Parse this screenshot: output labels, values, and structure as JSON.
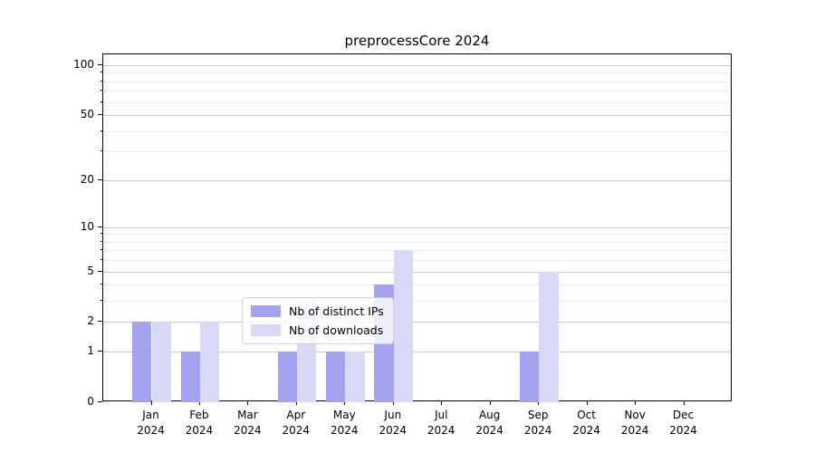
{
  "chart_data": {
    "type": "bar",
    "title": "preprocessCore 2024",
    "x_year": "2024",
    "categories": [
      "Jan",
      "Feb",
      "Mar",
      "Apr",
      "May",
      "Jun",
      "Jul",
      "Aug",
      "Sep",
      "Oct",
      "Nov",
      "Dec"
    ],
    "series": [
      {
        "name": "Nb of distinct IPs",
        "color": "#a3a3ef",
        "values": [
          2,
          1,
          0,
          1,
          1,
          4,
          0,
          0,
          1,
          0,
          0,
          0
        ]
      },
      {
        "name": "Nb of downloads",
        "color": "#d8d8f7",
        "values": [
          2,
          2,
          0,
          3,
          1,
          7,
          0,
          0,
          5,
          0,
          0,
          0
        ]
      }
    ],
    "y_axis": {
      "scale": "log1p",
      "tick_labels": [
        "0",
        "1",
        "2",
        "5",
        "10",
        "20",
        "50",
        "100"
      ],
      "tick_values": [
        0,
        1,
        2,
        5,
        10,
        20,
        50,
        100
      ],
      "minor_tick_values": [
        3,
        4,
        6,
        7,
        8,
        9,
        30,
        40,
        60,
        70,
        80,
        90
      ],
      "ylim": [
        0,
        116
      ]
    },
    "legend": {
      "position": "lower center"
    },
    "grid": true,
    "colors": {
      "grid_major": "#cbcbcb",
      "grid_minor": "#ececec",
      "axis": "#000000",
      "text": "#000000",
      "legend_border": "#d0d0d0"
    }
  }
}
